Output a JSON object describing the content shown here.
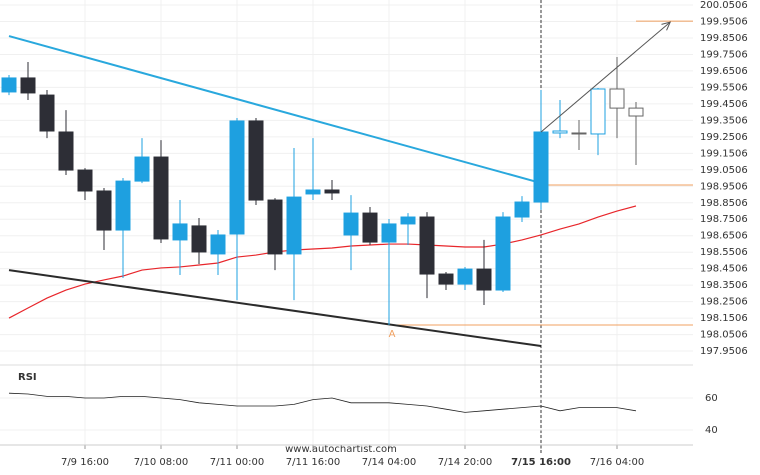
{
  "chart_data": [
    {
      "type": "candlestick",
      "categories": [
        null,
        null,
        null,
        null,
        "7/9 16:00",
        null,
        null,
        null,
        "7/10 08:00",
        null,
        null,
        null,
        "7/11 00:00",
        null,
        null,
        null,
        "7/11 16:00",
        null,
        null,
        null,
        "7/14 04:00",
        null,
        null,
        null,
        "7/14 20:00",
        null,
        null,
        null,
        "7/15 16:00",
        null,
        null,
        null,
        "7/16 04:00",
        null
      ],
      "open": [
        199.523,
        199.608,
        199.504,
        199.28,
        199.049,
        198.922,
        198.685,
        198.982,
        199.128,
        198.625,
        198.71,
        198.54,
        198.661,
        199.347,
        198.867,
        198.54,
        198.904,
        198.928,
        198.655,
        198.788,
        198.612,
        198.722,
        198.764,
        198.418,
        198.357,
        198.448,
        198.321,
        198.764,
        198.855,
        199.274,
        199.274,
        199.268,
        199.541,
        199.425
      ],
      "high": [
        199.626,
        199.705,
        199.535,
        199.413,
        199.061,
        198.94,
        199.001,
        199.243,
        199.231,
        198.867,
        198.758,
        198.685,
        199.365,
        199.365,
        198.879,
        199.183,
        199.243,
        198.989,
        198.897,
        198.825,
        198.752,
        198.788,
        198.794,
        198.43,
        198.461,
        198.625,
        198.794,
        198.891,
        199.535,
        199.474,
        199.353,
        199.547,
        199.735,
        199.462
      ],
      "low": [
        199.504,
        199.474,
        199.243,
        199.019,
        198.867,
        198.564,
        198.394,
        198.97,
        198.606,
        198.412,
        198.479,
        198.412,
        198.26,
        198.837,
        198.442,
        198.26,
        198.867,
        198.867,
        198.442,
        198.594,
        198.109,
        198.594,
        198.272,
        198.321,
        198.321,
        198.23,
        198.309,
        198.734,
        198.807,
        199.243,
        199.171,
        199.14,
        199.243,
        199.08
      ],
      "close": [
        199.608,
        199.517,
        199.286,
        199.049,
        198.922,
        198.685,
        198.982,
        199.128,
        198.631,
        198.722,
        198.552,
        198.655,
        199.347,
        198.867,
        198.54,
        198.885,
        198.928,
        198.91,
        198.788,
        198.612,
        198.722,
        198.764,
        198.418,
        198.357,
        198.448,
        198.321,
        198.764,
        198.855,
        199.28,
        199.286,
        199.268,
        199.541,
        199.425,
        199.377
      ],
      "up_color": "#1ea0e0",
      "down_color": "#2d2e36",
      "breakout_index": 28,
      "ylim": [
        197.866,
        200.081
      ],
      "yticks": [
        200.0506,
        199.9506,
        199.8506,
        199.7506,
        199.6506,
        199.5506,
        199.4506,
        199.3506,
        199.2506,
        199.1506,
        199.0506,
        198.9506,
        198.8506,
        198.7506,
        198.6506,
        198.5506,
        198.4506,
        198.3506,
        198.2506,
        198.1506,
        198.0506,
        197.9506
      ],
      "grid": true,
      "moving_average": {
        "color": "#e8262b",
        "values": [
          198.151,
          198.212,
          198.272,
          198.321,
          198.357,
          198.382,
          198.406,
          198.442,
          198.455,
          198.461,
          198.473,
          198.485,
          198.521,
          198.533,
          198.552,
          198.564,
          198.57,
          198.576,
          198.588,
          198.594,
          198.6,
          198.6,
          198.594,
          198.588,
          198.582,
          198.582,
          198.6,
          198.625,
          198.655,
          198.691,
          198.722,
          198.764,
          198.8,
          198.831
        ]
      },
      "trendlines": [
        {
          "color": "#29a8dd",
          "points": [
            [
              0,
              199.862
            ],
            [
              28,
              198.97
            ]
          ]
        },
        {
          "color": "#2b2b2b",
          "points": [
            [
              0,
              198.442
            ],
            [
              28,
              197.981
            ]
          ]
        }
      ],
      "levels": [
        {
          "color": "#f0a060",
          "value": 198.109,
          "from": 20
        },
        {
          "color": "#f0a060",
          "value": 198.958,
          "from": 28
        },
        {
          "color": "#f0a060",
          "value": 199.953,
          "from": 33
        }
      ],
      "arrow": {
        "color": "#555",
        "points": [
          [
            28,
            199.28
          ],
          [
            34.8,
            199.947
          ]
        ]
      },
      "annotation": {
        "text": "A",
        "color": "#f0a060",
        "index": 20,
        "value": 198.109
      },
      "footer": "www.autochartist.com"
    },
    {
      "type": "line",
      "label": "RSI",
      "values": [
        63,
        62.5,
        61,
        61,
        60,
        60,
        61,
        61,
        60,
        59,
        57,
        56,
        55,
        55,
        55,
        56,
        59,
        60,
        57,
        57,
        57,
        56,
        55,
        53,
        51,
        52,
        53,
        54,
        55,
        52,
        54,
        54,
        54,
        52
      ],
      "color": "#222",
      "ylim": [
        30,
        77.5
      ],
      "yticks": [
        60,
        40
      ]
    }
  ]
}
